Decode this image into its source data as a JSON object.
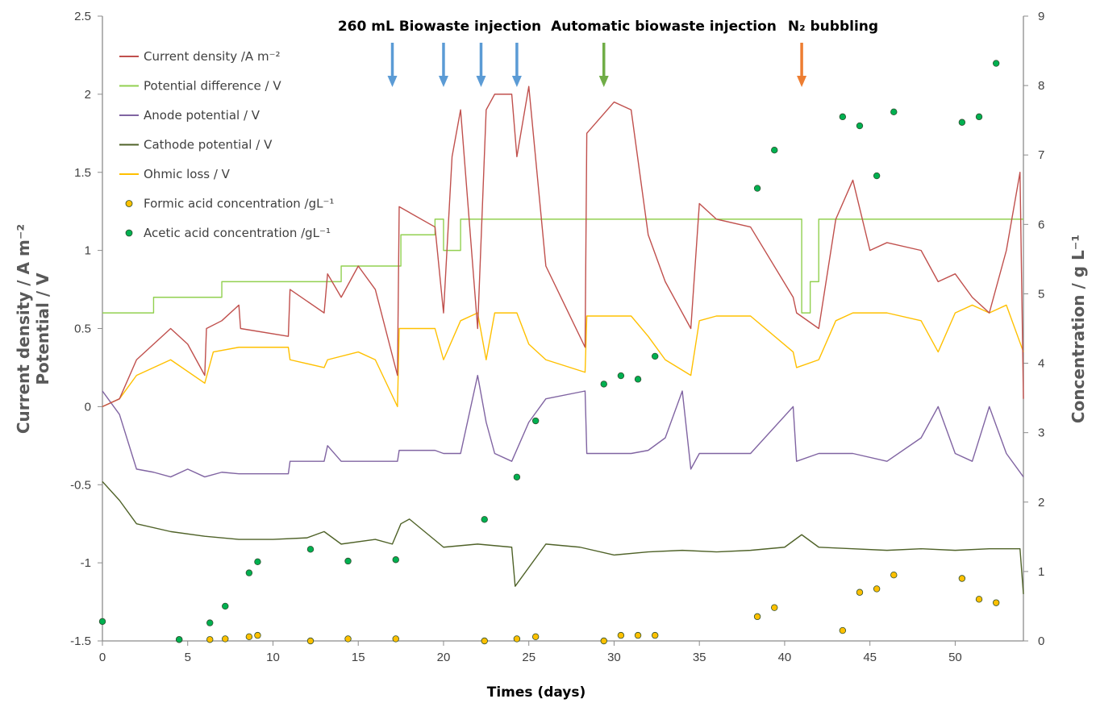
{
  "chart_data": {
    "type": "line",
    "xlabel": "Times (days)",
    "ylabel_left_line1": "Current density / A m⁻²",
    "ylabel_left_line2": "Potential / V",
    "ylabel_right": "Concentration / g L⁻¹",
    "xlim": [
      0,
      54
    ],
    "ylim_left": [
      -1.5,
      2.5
    ],
    "ylim_right": [
      0,
      9
    ],
    "x_ticks": [
      0,
      5,
      10,
      15,
      20,
      25,
      30,
      35,
      40,
      45,
      50
    ],
    "y_left_ticks": [
      -1.5,
      -1,
      -0.5,
      0,
      0.5,
      1,
      1.5,
      2,
      2.5
    ],
    "y_right_ticks": [
      0,
      1,
      2,
      3,
      4,
      5,
      6,
      7,
      8,
      9
    ],
    "x_tick_labels": [
      "0",
      "5",
      "10",
      "15",
      "20",
      "25",
      "30",
      "35",
      "40",
      "45",
      "50"
    ],
    "y_left_tick_labels": [
      "-1.5",
      "-1",
      "-0.5",
      "0",
      "0.5",
      "1",
      "1.5",
      "2",
      "2.5"
    ],
    "y_right_tick_labels": [
      "0",
      "1",
      "2",
      "3",
      "4",
      "5",
      "6",
      "7",
      "8",
      "9"
    ],
    "annotations": [
      {
        "text": "260 mL Biowaste injection",
        "arrows_x": [
          17,
          20,
          22.2,
          24.3
        ],
        "color": "#5b9bd5"
      },
      {
        "text": "Automatic biowaste injection",
        "arrows_x": [
          29.4
        ],
        "color": "#70ad47"
      },
      {
        "text": "N₂ bubbling",
        "arrows_x": [
          41
        ],
        "color": "#ed7d31"
      }
    ],
    "series": [
      {
        "name": "Current density  /A m⁻²",
        "axis": "left",
        "kind": "line",
        "color": "#c0504d",
        "x": [
          0,
          1,
          2,
          3,
          4,
          5,
          6,
          6.1,
          7,
          8,
          8.1,
          10.9,
          11,
          13,
          13.2,
          14,
          15,
          16,
          17.3,
          17.4,
          19.5,
          20,
          20.5,
          21,
          22,
          22.5,
          23,
          24,
          24.3,
          25,
          26,
          28.3,
          28.4,
          30,
          31,
          32,
          33,
          34.5,
          35,
          36,
          38,
          40.5,
          40.7,
          42,
          43,
          44,
          45,
          46,
          48,
          49,
          50,
          51,
          52,
          53,
          53.8,
          54
        ],
        "y": [
          0,
          0.05,
          0.3,
          0.4,
          0.5,
          0.4,
          0.2,
          0.5,
          0.55,
          0.65,
          0.5,
          0.45,
          0.75,
          0.6,
          0.85,
          0.7,
          0.9,
          0.75,
          0.2,
          1.28,
          1.15,
          0.6,
          1.6,
          1.9,
          0.5,
          1.9,
          2.0,
          2.0,
          1.6,
          2.05,
          0.9,
          0.38,
          1.75,
          1.95,
          1.9,
          1.1,
          0.8,
          0.5,
          1.3,
          1.2,
          1.15,
          0.7,
          0.6,
          0.5,
          1.2,
          1.45,
          1.0,
          1.05,
          1.0,
          0.8,
          0.85,
          0.7,
          0.6,
          1.0,
          1.5,
          0.05
        ]
      },
      {
        "name": "Potential difference / V",
        "axis": "left",
        "kind": "step",
        "color": "#92d050",
        "x": [
          0,
          3,
          7,
          11,
          14,
          17.5,
          19.5,
          20,
          21,
          29,
          41,
          41.5,
          42,
          54
        ],
        "y": [
          0.6,
          0.7,
          0.8,
          0.8,
          0.9,
          1.1,
          1.2,
          1.0,
          1.2,
          1.2,
          0.6,
          0.8,
          1.2,
          1.2
        ]
      },
      {
        "name": "Anode potential / V",
        "axis": "left",
        "kind": "line",
        "color": "#8064a2",
        "x": [
          0,
          1,
          2,
          3,
          4,
          5,
          6,
          7,
          8,
          9,
          10.9,
          11,
          13,
          13.2,
          14,
          15,
          16,
          17.3,
          17.4,
          19.5,
          20,
          21,
          22,
          22.5,
          23,
          24,
          25,
          26,
          28.3,
          28.4,
          31,
          32,
          33,
          34,
          34.5,
          35,
          36,
          38,
          40.5,
          40.7,
          42,
          43,
          44,
          46,
          48,
          49,
          50,
          51,
          52,
          53,
          54
        ],
        "y": [
          0.1,
          -0.05,
          -0.4,
          -0.42,
          -0.45,
          -0.4,
          -0.45,
          -0.42,
          -0.43,
          -0.43,
          -0.43,
          -0.35,
          -0.35,
          -0.25,
          -0.35,
          -0.35,
          -0.35,
          -0.35,
          -0.28,
          -0.28,
          -0.3,
          -0.3,
          0.2,
          -0.1,
          -0.3,
          -0.35,
          -0.1,
          0.05,
          0.1,
          -0.3,
          -0.3,
          -0.28,
          -0.2,
          0.1,
          -0.4,
          -0.3,
          -0.3,
          -0.3,
          0.0,
          -0.35,
          -0.3,
          -0.3,
          -0.3,
          -0.35,
          -0.2,
          0.0,
          -0.3,
          -0.35,
          0.0,
          -0.3,
          -0.45
        ]
      },
      {
        "name": "Cathode potential / V",
        "axis": "left",
        "kind": "line",
        "color": "#4f6228",
        "x": [
          0,
          1,
          2,
          4,
          6,
          8,
          10,
          12,
          13,
          14,
          16,
          17,
          17.5,
          18,
          20,
          22,
          24,
          24.2,
          26,
          28,
          30,
          32,
          34,
          36,
          38,
          40,
          41,
          42,
          44,
          46,
          48,
          50,
          52,
          53.8,
          54
        ],
        "y": [
          -0.48,
          -0.6,
          -0.75,
          -0.8,
          -0.83,
          -0.85,
          -0.85,
          -0.84,
          -0.8,
          -0.88,
          -0.85,
          -0.88,
          -0.75,
          -0.72,
          -0.9,
          -0.88,
          -0.9,
          -1.15,
          -0.88,
          -0.9,
          -0.95,
          -0.93,
          -0.92,
          -0.93,
          -0.92,
          -0.9,
          -0.82,
          -0.9,
          -0.91,
          -0.92,
          -0.91,
          -0.92,
          -0.91,
          -0.91,
          -1.2
        ]
      },
      {
        "name": "Ohmic loss / V",
        "axis": "left",
        "kind": "line",
        "color": "#ffc000",
        "x": [
          0,
          1,
          2,
          4,
          6,
          6.5,
          8,
          10.9,
          11,
          13,
          13.2,
          15,
          16,
          17.3,
          17.4,
          19.5,
          20,
          21,
          22,
          22.5,
          23,
          24.3,
          25,
          26,
          28.3,
          28.4,
          31,
          32,
          33,
          34.5,
          35,
          36,
          38,
          40.5,
          40.7,
          42,
          43,
          44,
          46,
          48,
          49,
          50,
          51,
          52,
          53,
          54
        ],
        "y": [
          0,
          0.05,
          0.2,
          0.3,
          0.15,
          0.35,
          0.38,
          0.38,
          0.3,
          0.25,
          0.3,
          0.35,
          0.3,
          0.0,
          0.5,
          0.5,
          0.3,
          0.55,
          0.6,
          0.3,
          0.6,
          0.6,
          0.4,
          0.3,
          0.22,
          0.58,
          0.58,
          0.45,
          0.3,
          0.2,
          0.55,
          0.58,
          0.58,
          0.35,
          0.25,
          0.3,
          0.55,
          0.6,
          0.6,
          0.55,
          0.35,
          0.6,
          0.65,
          0.6,
          0.65,
          0.35
        ]
      },
      {
        "name": "Formic acid concentration  /gL⁻¹",
        "axis": "right",
        "kind": "scatter",
        "color": "#ffc000",
        "x": [
          4.5,
          6.3,
          7.2,
          8.6,
          9.1,
          12.2,
          14.4,
          17.2,
          22.4,
          24.3,
          25.4,
          29.4,
          30.4,
          31.4,
          32.4,
          38.4,
          39.4,
          43.4,
          44.4,
          45.4,
          46.4,
          50.4,
          51.4,
          52.4
        ],
        "y": [
          0.02,
          0.02,
          0.03,
          0.06,
          0.08,
          0.0,
          0.03,
          0.03,
          0.0,
          0.03,
          0.06,
          0.0,
          0.08,
          0.08,
          0.08,
          0.35,
          0.48,
          0.15,
          0.7,
          0.75,
          0.95,
          0.9,
          0.6,
          0.55
        ]
      },
      {
        "name": "Acetic acid concentration  /gL⁻¹",
        "axis": "right",
        "kind": "scatter",
        "color": "#00b050",
        "x": [
          0,
          4.5,
          6.3,
          7.2,
          8.6,
          9.1,
          12.2,
          14.4,
          17.2,
          22.4,
          24.3,
          25.4,
          29.4,
          30.4,
          31.4,
          32.4,
          38.4,
          39.4,
          43.4,
          44.4,
          45.4,
          46.4,
          50.4,
          51.4,
          52.4
        ],
        "y": [
          0.28,
          0.02,
          0.26,
          0.5,
          0.98,
          1.14,
          1.32,
          1.15,
          1.17,
          1.75,
          2.36,
          3.17,
          3.7,
          3.82,
          3.77,
          4.1,
          6.52,
          7.07,
          7.55,
          7.42,
          6.7,
          7.62,
          7.47,
          7.55,
          8.32
        ]
      }
    ]
  }
}
